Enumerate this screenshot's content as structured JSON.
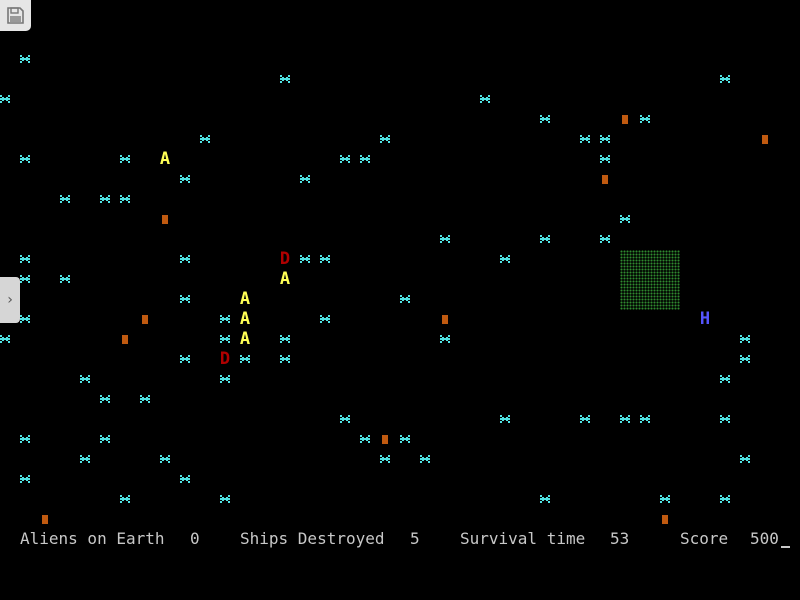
{
  "colors": {
    "star": "#4fe3e3",
    "block": "#c05a10",
    "alien": "#ffff55",
    "destroyer": "#b00000",
    "player": "#5555ff",
    "field": "#2f8a2f",
    "text": "#c8c8c8"
  },
  "entities": {
    "stars": [
      [
        1,
        2
      ],
      [
        14,
        3
      ],
      [
        36,
        3
      ],
      [
        0,
        4
      ],
      [
        24,
        4
      ],
      [
        27,
        5
      ],
      [
        32,
        5
      ],
      [
        10,
        6
      ],
      [
        19,
        6
      ],
      [
        29,
        6
      ],
      [
        30,
        6
      ],
      [
        1,
        7
      ],
      [
        6,
        7
      ],
      [
        17,
        7
      ],
      [
        18,
        7
      ],
      [
        30,
        7
      ],
      [
        9,
        8
      ],
      [
        15,
        8
      ],
      [
        3,
        9
      ],
      [
        5,
        9
      ],
      [
        6,
        9
      ],
      [
        31,
        10
      ],
      [
        22,
        11
      ],
      [
        27,
        11
      ],
      [
        30,
        11
      ],
      [
        1,
        12
      ],
      [
        9,
        12
      ],
      [
        15,
        12
      ],
      [
        16,
        12
      ],
      [
        25,
        12
      ],
      [
        1,
        13
      ],
      [
        3,
        13
      ],
      [
        9,
        14
      ],
      [
        20,
        14
      ],
      [
        1,
        15
      ],
      [
        11,
        15
      ],
      [
        16,
        15
      ],
      [
        0,
        16
      ],
      [
        11,
        16
      ],
      [
        14,
        16
      ],
      [
        22,
        16
      ],
      [
        37,
        16
      ],
      [
        9,
        17
      ],
      [
        12,
        17
      ],
      [
        14,
        17
      ],
      [
        37,
        17
      ],
      [
        4,
        18
      ],
      [
        11,
        18
      ],
      [
        36,
        18
      ],
      [
        5,
        19
      ],
      [
        7,
        19
      ],
      [
        17,
        20
      ],
      [
        25,
        20
      ],
      [
        29,
        20
      ],
      [
        31,
        20
      ],
      [
        32,
        20
      ],
      [
        36,
        20
      ],
      [
        1,
        21
      ],
      [
        5,
        21
      ],
      [
        18,
        21
      ],
      [
        20,
        21
      ],
      [
        4,
        22
      ],
      [
        8,
        22
      ],
      [
        19,
        22
      ],
      [
        21,
        22
      ],
      [
        37,
        22
      ],
      [
        1,
        23
      ],
      [
        9,
        23
      ],
      [
        6,
        24
      ],
      [
        11,
        24
      ],
      [
        27,
        24
      ],
      [
        33,
        24
      ],
      [
        36,
        24
      ]
    ],
    "blocks": [
      [
        31,
        5
      ],
      [
        38,
        6
      ],
      [
        30,
        8
      ],
      [
        8,
        10
      ],
      [
        7,
        15
      ],
      [
        22,
        15
      ],
      [
        6,
        16
      ],
      [
        19,
        21
      ],
      [
        2,
        25
      ],
      [
        33,
        25
      ]
    ],
    "aliens": {
      "glyph": "A",
      "cells": [
        [
          8,
          7
        ],
        [
          14,
          13
        ],
        [
          12,
          14
        ],
        [
          12,
          15
        ],
        [
          12,
          16
        ]
      ]
    },
    "destroyers": {
      "glyph": "D",
      "cells": [
        [
          14,
          12
        ],
        [
          11,
          17
        ]
      ]
    },
    "player": {
      "glyph": "H",
      "cell": [
        35,
        15
      ]
    }
  },
  "status": {
    "aliens_label": "Aliens on Earth",
    "aliens_value": "0",
    "ships_label": "Ships Destroyed",
    "ships_value": "5",
    "time_label": "Survival time",
    "time_value": "53",
    "score_label": "Score",
    "score_value": "500"
  },
  "ui": {
    "save_icon": "floppy-disk-icon",
    "side_tab_icon": "chevron-right-icon",
    "side_tab_glyph": "›"
  }
}
